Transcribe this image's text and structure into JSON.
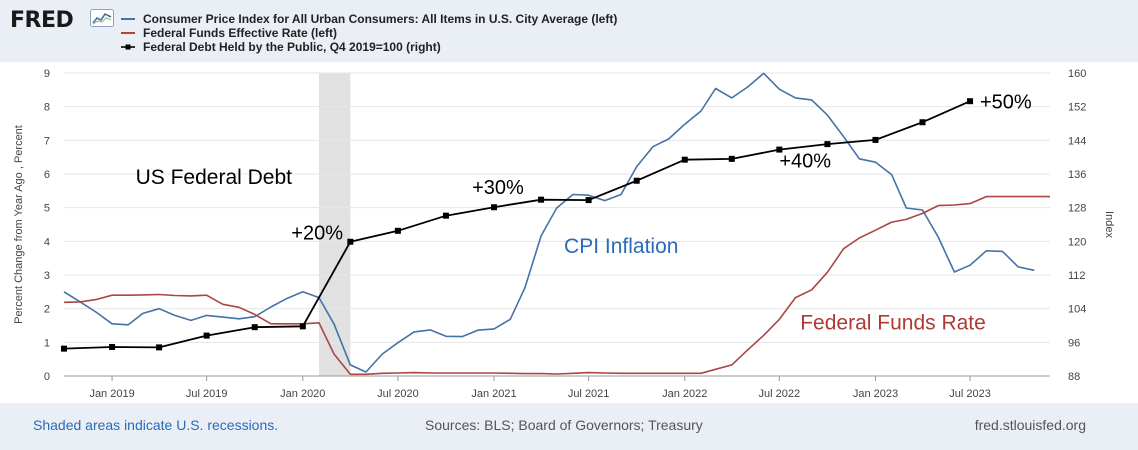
{
  "header": {
    "logo_text": "FRED",
    "logo_icon": "chart-line-icon",
    "legend": [
      {
        "label": "Consumer Price Index for All Urban Consumers: All Items in U.S. City Average (left)",
        "color": "#4572a7"
      },
      {
        "label": "Federal Funds Effective Rate (left)",
        "color": "#aa4643"
      },
      {
        "label": "Federal Debt Held by the Public, Q4 2019=100 (right)",
        "color": "#000000"
      }
    ]
  },
  "footer": {
    "recession_note": "Shaded areas indicate U.S. recessions.",
    "sources": "Sources: BLS; Board of Governors; Treasury",
    "site": "fred.stlouisfed.org"
  },
  "chart_data": {
    "type": "line",
    "y_left": {
      "label": "Percent Change from Year Ago , Percent",
      "ticks": [
        0,
        1,
        2,
        3,
        4,
        5,
        6,
        7,
        8,
        9
      ],
      "range": [
        0,
        9
      ]
    },
    "y_right": {
      "label": "Index",
      "ticks": [
        88,
        96,
        104,
        112,
        120,
        128,
        136,
        144,
        152,
        160
      ],
      "range": [
        88,
        160
      ]
    },
    "x": {
      "range": [
        "2018-10-01",
        "2023-12-01"
      ],
      "ticks": [
        "Jan 2019",
        "Jul 2019",
        "Jan 2020",
        "Jul 2020",
        "Jan 2021",
        "Jul 2021",
        "Jan 2022",
        "Jul 2022",
        "Jan 2023",
        "Jul 2023"
      ]
    },
    "recession": {
      "start": "2020-02-01",
      "end": "2020-04-01"
    },
    "series": [
      {
        "name": "Consumer Price Index for All Urban Consumers: All Items in U.S. City Average (left)",
        "axis": "left",
        "color": "#4572a7",
        "markers": false,
        "points": [
          [
            "2018-10-01",
            2.5
          ],
          [
            "2018-11-01",
            2.2
          ],
          [
            "2018-12-01",
            1.9
          ],
          [
            "2019-01-01",
            1.55
          ],
          [
            "2019-02-01",
            1.52
          ],
          [
            "2019-03-01",
            1.86
          ],
          [
            "2019-04-01",
            2.0
          ],
          [
            "2019-05-01",
            1.8
          ],
          [
            "2019-06-01",
            1.65
          ],
          [
            "2019-07-01",
            1.8
          ],
          [
            "2019-08-01",
            1.75
          ],
          [
            "2019-09-01",
            1.7
          ],
          [
            "2019-10-01",
            1.76
          ],
          [
            "2019-11-01",
            2.05
          ],
          [
            "2019-12-01",
            2.3
          ],
          [
            "2020-01-01",
            2.5
          ],
          [
            "2020-02-01",
            2.33
          ],
          [
            "2020-03-01",
            1.54
          ],
          [
            "2020-04-01",
            0.33
          ],
          [
            "2020-05-01",
            0.12
          ],
          [
            "2020-06-01",
            0.65
          ],
          [
            "2020-07-01",
            0.99
          ],
          [
            "2020-08-01",
            1.31
          ],
          [
            "2020-09-01",
            1.37
          ],
          [
            "2020-10-01",
            1.18
          ],
          [
            "2020-11-01",
            1.17
          ],
          [
            "2020-12-01",
            1.36
          ],
          [
            "2021-01-01",
            1.4
          ],
          [
            "2021-02-01",
            1.68
          ],
          [
            "2021-03-01",
            2.62
          ],
          [
            "2021-04-01",
            4.16
          ],
          [
            "2021-05-01",
            4.99
          ],
          [
            "2021-06-01",
            5.39
          ],
          [
            "2021-07-01",
            5.37
          ],
          [
            "2021-08-01",
            5.21
          ],
          [
            "2021-09-01",
            5.39
          ],
          [
            "2021-10-01",
            6.22
          ],
          [
            "2021-11-01",
            6.81
          ],
          [
            "2021-12-01",
            7.04
          ],
          [
            "2022-01-01",
            7.48
          ],
          [
            "2022-02-01",
            7.87
          ],
          [
            "2022-03-01",
            8.54
          ],
          [
            "2022-04-01",
            8.26
          ],
          [
            "2022-05-01",
            8.58
          ],
          [
            "2022-06-01",
            8.99
          ],
          [
            "2022-07-01",
            8.52
          ],
          [
            "2022-08-01",
            8.26
          ],
          [
            "2022-09-01",
            8.2
          ],
          [
            "2022-10-01",
            7.75
          ],
          [
            "2022-11-01",
            7.11
          ],
          [
            "2022-12-01",
            6.45
          ],
          [
            "2023-01-01",
            6.35
          ],
          [
            "2023-02-01",
            5.98
          ],
          [
            "2023-03-01",
            4.99
          ],
          [
            "2023-04-01",
            4.93
          ],
          [
            "2023-05-01",
            4.13
          ],
          [
            "2023-06-01",
            3.09
          ],
          [
            "2023-07-01",
            3.29
          ],
          [
            "2023-08-01",
            3.72
          ],
          [
            "2023-09-01",
            3.7
          ],
          [
            "2023-10-01",
            3.24
          ],
          [
            "2023-11-01",
            3.14
          ]
        ]
      },
      {
        "name": "Federal Funds Effective Rate (left)",
        "axis": "left",
        "color": "#aa4643",
        "markers": false,
        "points": [
          [
            "2018-10-01",
            2.19
          ],
          [
            "2018-11-01",
            2.2
          ],
          [
            "2018-12-01",
            2.27
          ],
          [
            "2019-01-01",
            2.4
          ],
          [
            "2019-02-01",
            2.4
          ],
          [
            "2019-03-01",
            2.41
          ],
          [
            "2019-04-01",
            2.42
          ],
          [
            "2019-05-01",
            2.39
          ],
          [
            "2019-06-01",
            2.38
          ],
          [
            "2019-07-01",
            2.4
          ],
          [
            "2019-08-01",
            2.13
          ],
          [
            "2019-09-01",
            2.04
          ],
          [
            "2019-10-01",
            1.83
          ],
          [
            "2019-11-01",
            1.55
          ],
          [
            "2019-12-01",
            1.55
          ],
          [
            "2020-01-01",
            1.55
          ],
          [
            "2020-02-01",
            1.58
          ],
          [
            "2020-03-01",
            0.65
          ],
          [
            "2020-04-01",
            0.05
          ],
          [
            "2020-05-01",
            0.05
          ],
          [
            "2020-06-01",
            0.08
          ],
          [
            "2020-07-01",
            0.09
          ],
          [
            "2020-08-01",
            0.1
          ],
          [
            "2020-09-01",
            0.09
          ],
          [
            "2020-10-01",
            0.09
          ],
          [
            "2020-11-01",
            0.09
          ],
          [
            "2020-12-01",
            0.09
          ],
          [
            "2021-01-01",
            0.09
          ],
          [
            "2021-02-01",
            0.08
          ],
          [
            "2021-03-01",
            0.07
          ],
          [
            "2021-04-01",
            0.07
          ],
          [
            "2021-05-01",
            0.06
          ],
          [
            "2021-06-01",
            0.08
          ],
          [
            "2021-07-01",
            0.1
          ],
          [
            "2021-08-01",
            0.09
          ],
          [
            "2021-09-01",
            0.08
          ],
          [
            "2021-10-01",
            0.08
          ],
          [
            "2021-11-01",
            0.08
          ],
          [
            "2021-12-01",
            0.08
          ],
          [
            "2022-01-01",
            0.08
          ],
          [
            "2022-02-01",
            0.08
          ],
          [
            "2022-03-01",
            0.2
          ],
          [
            "2022-04-01",
            0.33
          ],
          [
            "2022-05-01",
            0.77
          ],
          [
            "2022-06-01",
            1.21
          ],
          [
            "2022-07-01",
            1.68
          ],
          [
            "2022-08-01",
            2.33
          ],
          [
            "2022-09-01",
            2.56
          ],
          [
            "2022-10-01",
            3.08
          ],
          [
            "2022-11-01",
            3.78
          ],
          [
            "2022-12-01",
            4.1
          ],
          [
            "2023-01-01",
            4.33
          ],
          [
            "2023-02-01",
            4.57
          ],
          [
            "2023-03-01",
            4.65
          ],
          [
            "2023-04-01",
            4.83
          ],
          [
            "2023-05-01",
            5.06
          ],
          [
            "2023-06-01",
            5.08
          ],
          [
            "2023-07-01",
            5.12
          ],
          [
            "2023-08-01",
            5.33
          ],
          [
            "2023-09-01",
            5.33
          ],
          [
            "2023-10-01",
            5.33
          ],
          [
            "2023-11-01",
            5.33
          ],
          [
            "2023-12-01",
            5.33
          ]
        ]
      },
      {
        "name": "Federal Debt Held by the Public, Q4 2019=100 (right)",
        "axis": "right",
        "color": "#000000",
        "markers": true,
        "points": [
          [
            "2018-10-01",
            94.5
          ],
          [
            "2019-01-01",
            94.9
          ],
          [
            "2019-04-01",
            94.8
          ],
          [
            "2019-07-01",
            97.6
          ],
          [
            "2019-10-01",
            99.6
          ],
          [
            "2020-01-01",
            99.8
          ],
          [
            "2020-04-01",
            119.9
          ],
          [
            "2020-07-01",
            122.5
          ],
          [
            "2020-10-01",
            126.1
          ],
          [
            "2021-01-01",
            128.1
          ],
          [
            "2021-04-01",
            129.9
          ],
          [
            "2021-07-01",
            129.8
          ],
          [
            "2021-10-01",
            134.4
          ],
          [
            "2022-01-01",
            139.4
          ],
          [
            "2022-04-01",
            139.6
          ],
          [
            "2022-07-01",
            141.8
          ],
          [
            "2022-10-01",
            143.1
          ],
          [
            "2023-01-01",
            144.1
          ],
          [
            "2023-04-01",
            148.3
          ],
          [
            "2023-07-01",
            153.3
          ]
        ]
      }
    ],
    "annotations": [
      {
        "text": "US Federal Debt",
        "x": "2019-02-15",
        "y_right": 133.6,
        "color": "#000000",
        "size": 21
      },
      {
        "text": "+20%",
        "x": "2019-12-10",
        "y_right": 120.4,
        "color": "#000000",
        "size": 20
      },
      {
        "text": "+30%",
        "x": "2020-11-20",
        "y_right": 131.2,
        "color": "#000000",
        "size": 20
      },
      {
        "text": "+40%",
        "x": "2022-07-01",
        "y_right": 137.5,
        "color": "#000000",
        "size": 20
      },
      {
        "text": "+50%",
        "x": "2023-07-20",
        "y_right": 151.6,
        "color": "#000000",
        "size": 20
      },
      {
        "text": "CPI Inflation",
        "x": "2021-05-15",
        "y_right": 117.2,
        "color": "#2a6bb8",
        "size": 21
      },
      {
        "text": "Federal Funds Rate",
        "x": "2022-08-10",
        "y_right": 99.0,
        "color": "#b03a33",
        "size": 21
      }
    ]
  }
}
